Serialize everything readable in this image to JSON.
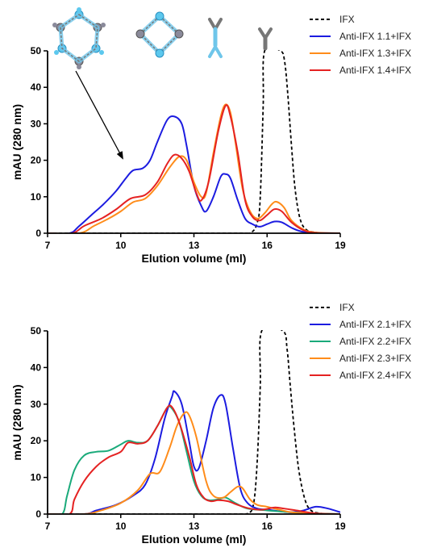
{
  "chart_data": [
    {
      "type": "line",
      "xlabel": "Elution volume  (ml)",
      "ylabel": "mAU (280 nm)",
      "xlim": [
        7,
        19
      ],
      "ylim": [
        0,
        50
      ],
      "xticks": [
        7,
        10,
        13,
        16,
        19
      ],
      "yticks": [
        0,
        10,
        20,
        30,
        40,
        50
      ],
      "legend_position": "top-right",
      "series": [
        {
          "name": "IFX",
          "color": "#000000",
          "dash": "4,3",
          "points": [
            [
              7,
              0
            ],
            [
              14.5,
              0
            ],
            [
              15.3,
              0.1
            ],
            [
              15.6,
              3
            ],
            [
              15.72,
              10
            ],
            [
              15.84,
              35
            ],
            [
              15.9,
              50
            ],
            [
              16.55,
              50
            ],
            [
              16.72,
              47
            ],
            [
              16.85,
              38
            ],
            [
              17.0,
              24
            ],
            [
              17.15,
              12
            ],
            [
              17.35,
              4
            ],
            [
              17.6,
              1
            ],
            [
              18,
              0.2
            ],
            [
              18.5,
              0
            ]
          ]
        },
        {
          "name": "Anti-IFX 1.1+IFX",
          "color": "#1c1ce0",
          "points": [
            [
              7,
              0
            ],
            [
              7.9,
              0
            ],
            [
              8.3,
              2
            ],
            [
              8.8,
              5
            ],
            [
              9.3,
              8
            ],
            [
              9.8,
              11.5
            ],
            [
              10.2,
              15
            ],
            [
              10.5,
              17.2
            ],
            [
              10.9,
              17.8
            ],
            [
              11.2,
              20
            ],
            [
              11.5,
              25
            ],
            [
              11.9,
              31
            ],
            [
              12.2,
              32
            ],
            [
              12.5,
              30
            ],
            [
              12.7,
              24
            ],
            [
              13.0,
              13
            ],
            [
              13.3,
              7.5
            ],
            [
              13.5,
              6
            ],
            [
              13.8,
              10
            ],
            [
              14.1,
              15.5
            ],
            [
              14.3,
              16.2
            ],
            [
              14.5,
              15
            ],
            [
              14.8,
              9
            ],
            [
              15.1,
              4
            ],
            [
              15.4,
              2.5
            ],
            [
              15.7,
              1.8
            ],
            [
              16.0,
              2.5
            ],
            [
              16.3,
              3.2
            ],
            [
              16.6,
              3
            ],
            [
              17.0,
              1.5
            ],
            [
              17.4,
              0.5
            ],
            [
              18,
              0.1
            ],
            [
              19,
              0
            ]
          ]
        },
        {
          "name": "Anti-IFX 1.3+IFX",
          "color": "#ff8c1a",
          "points": [
            [
              7,
              0
            ],
            [
              8.3,
              0
            ],
            [
              8.9,
              2
            ],
            [
              9.5,
              4
            ],
            [
              10.0,
              6
            ],
            [
              10.5,
              8.5
            ],
            [
              11.0,
              9.5
            ],
            [
              11.5,
              13
            ],
            [
              12.0,
              18
            ],
            [
              12.4,
              21
            ],
            [
              12.7,
              20
            ],
            [
              13.0,
              14
            ],
            [
              13.3,
              10
            ],
            [
              13.5,
              11
            ],
            [
              13.8,
              22
            ],
            [
              14.1,
              32
            ],
            [
              14.3,
              35.3
            ],
            [
              14.5,
              33
            ],
            [
              14.7,
              25
            ],
            [
              15.0,
              12
            ],
            [
              15.3,
              6
            ],
            [
              15.6,
              4
            ],
            [
              15.9,
              5.5
            ],
            [
              16.2,
              8
            ],
            [
              16.4,
              8.6
            ],
            [
              16.7,
              7
            ],
            [
              17.0,
              3.5
            ],
            [
              17.5,
              1
            ],
            [
              18,
              0.2
            ],
            [
              19,
              0
            ]
          ]
        },
        {
          "name": "Anti-IFX 1.4+IFX",
          "color": "#e52222",
          "points": [
            [
              7,
              0
            ],
            [
              8.0,
              0
            ],
            [
              8.5,
              2
            ],
            [
              9.2,
              4
            ],
            [
              9.8,
              6.5
            ],
            [
              10.4,
              9.5
            ],
            [
              11.0,
              10.5
            ],
            [
              11.5,
              14
            ],
            [
              11.9,
              19
            ],
            [
              12.2,
              21.5
            ],
            [
              12.5,
              20.5
            ],
            [
              12.8,
              17
            ],
            [
              13.1,
              11
            ],
            [
              13.3,
              9
            ],
            [
              13.6,
              14
            ],
            [
              14.0,
              28
            ],
            [
              14.3,
              35
            ],
            [
              14.5,
              32
            ],
            [
              14.8,
              22
            ],
            [
              15.1,
              9
            ],
            [
              15.4,
              4.5
            ],
            [
              15.7,
              3.5
            ],
            [
              16.0,
              5
            ],
            [
              16.3,
              6.6
            ],
            [
              16.6,
              6
            ],
            [
              17.0,
              3
            ],
            [
              17.5,
              0.8
            ],
            [
              18,
              0.1
            ],
            [
              19,
              0
            ]
          ]
        }
      ]
    },
    {
      "type": "line",
      "xlabel": "Elution volume  (ml)",
      "ylabel": "mAU (280 nm)",
      "xlim": [
        7,
        19
      ],
      "ylim": [
        0,
        50
      ],
      "xticks": [
        7,
        10,
        13,
        16,
        19
      ],
      "yticks": [
        0,
        10,
        20,
        30,
        40,
        50
      ],
      "legend_position": "top-right",
      "series": [
        {
          "name": "IFX",
          "color": "#000000",
          "dash": "4,3",
          "points": [
            [
              7,
              0
            ],
            [
              14.5,
              0
            ],
            [
              15.2,
              0.2
            ],
            [
              15.45,
              3
            ],
            [
              15.6,
              15
            ],
            [
              15.72,
              35
            ],
            [
              15.78,
              50
            ],
            [
              16.65,
              50
            ],
            [
              16.82,
              45
            ],
            [
              16.95,
              35
            ],
            [
              17.1,
              24
            ],
            [
              17.3,
              12
            ],
            [
              17.55,
              4
            ],
            [
              17.8,
              1
            ],
            [
              18.2,
              0.2
            ],
            [
              18.8,
              0
            ]
          ]
        },
        {
          "name": "Anti-IFX 2.1+IFX",
          "color": "#1c1ce0",
          "points": [
            [
              7,
              0
            ],
            [
              8.5,
              0
            ],
            [
              9.0,
              1
            ],
            [
              9.8,
              2.5
            ],
            [
              10.5,
              5
            ],
            [
              11.0,
              8
            ],
            [
              11.4,
              15
            ],
            [
              11.8,
              26
            ],
            [
              12.1,
              32
            ],
            [
              12.2,
              33.5
            ],
            [
              12.5,
              30
            ],
            [
              12.8,
              20
            ],
            [
              13.0,
              13
            ],
            [
              13.2,
              12.5
            ],
            [
              13.5,
              20
            ],
            [
              13.8,
              29
            ],
            [
              14.1,
              32.5
            ],
            [
              14.3,
              30
            ],
            [
              14.6,
              18
            ],
            [
              14.9,
              7
            ],
            [
              15.2,
              3
            ],
            [
              15.6,
              1.5
            ],
            [
              16.0,
              1.2
            ],
            [
              16.5,
              0.8
            ],
            [
              17.0,
              0.5
            ],
            [
              17.5,
              1
            ],
            [
              18.0,
              2
            ],
            [
              18.5,
              1.5
            ],
            [
              19,
              0.5
            ]
          ]
        },
        {
          "name": "Anti-IFX 2.2+IFX",
          "color": "#1aaa7a",
          "points": [
            [
              7,
              0
            ],
            [
              7.6,
              0
            ],
            [
              7.8,
              5
            ],
            [
              8.1,
              12
            ],
            [
              8.5,
              16
            ],
            [
              9.0,
              17
            ],
            [
              9.5,
              17.3
            ],
            [
              10.0,
              19
            ],
            [
              10.3,
              20
            ],
            [
              10.7,
              19.5
            ],
            [
              11.1,
              20
            ],
            [
              11.5,
              24
            ],
            [
              11.9,
              29
            ],
            [
              12.1,
              28.8
            ],
            [
              12.4,
              25
            ],
            [
              12.7,
              17
            ],
            [
              13.0,
              9
            ],
            [
              13.3,
              5
            ],
            [
              13.6,
              3.8
            ],
            [
              14.0,
              4
            ],
            [
              14.3,
              4.5
            ],
            [
              14.7,
              3
            ],
            [
              15.2,
              1.5
            ],
            [
              16,
              1
            ],
            [
              17,
              0.5
            ],
            [
              18,
              0.2
            ],
            [
              19,
              0
            ]
          ]
        },
        {
          "name": "Anti-IFX 2.3+IFX",
          "color": "#ff8c1a",
          "points": [
            [
              7,
              0
            ],
            [
              8.5,
              0
            ],
            [
              9.2,
              1
            ],
            [
              10.0,
              3
            ],
            [
              10.7,
              6.5
            ],
            [
              11.2,
              11
            ],
            [
              11.6,
              11.5
            ],
            [
              12.0,
              18
            ],
            [
              12.3,
              24
            ],
            [
              12.6,
              27.5
            ],
            [
              12.8,
              27
            ],
            [
              13.1,
              21
            ],
            [
              13.5,
              9
            ],
            [
              13.8,
              5
            ],
            [
              14.2,
              4.5
            ],
            [
              14.5,
              6
            ],
            [
              14.8,
              7.5
            ],
            [
              15.0,
              7
            ],
            [
              15.3,
              4
            ],
            [
              15.6,
              2.5
            ],
            [
              16.0,
              2
            ],
            [
              16.5,
              1.2
            ],
            [
              17,
              0.5
            ],
            [
              18,
              0.1
            ],
            [
              19,
              0
            ]
          ]
        },
        {
          "name": "Anti-IFX 2.4+IFX",
          "color": "#e52222",
          "points": [
            [
              7,
              0
            ],
            [
              7.9,
              0
            ],
            [
              8.1,
              4
            ],
            [
              8.5,
              9
            ],
            [
              9.0,
              13
            ],
            [
              9.5,
              15.5
            ],
            [
              10.0,
              17
            ],
            [
              10.3,
              19.5
            ],
            [
              10.7,
              19.2
            ],
            [
              11.1,
              20
            ],
            [
              11.5,
              24
            ],
            [
              11.9,
              29
            ],
            [
              12.1,
              29.2
            ],
            [
              12.4,
              25
            ],
            [
              12.8,
              16
            ],
            [
              13.1,
              8
            ],
            [
              13.4,
              4.5
            ],
            [
              13.7,
              3.5
            ],
            [
              14.0,
              3.8
            ],
            [
              14.4,
              3.5
            ],
            [
              14.8,
              2.5
            ],
            [
              15.3,
              1.5
            ],
            [
              15.8,
              1.2
            ],
            [
              16.3,
              1.8
            ],
            [
              16.7,
              1.5
            ],
            [
              17.2,
              1
            ],
            [
              18,
              0.2
            ],
            [
              19,
              0
            ]
          ]
        }
      ]
    }
  ]
}
